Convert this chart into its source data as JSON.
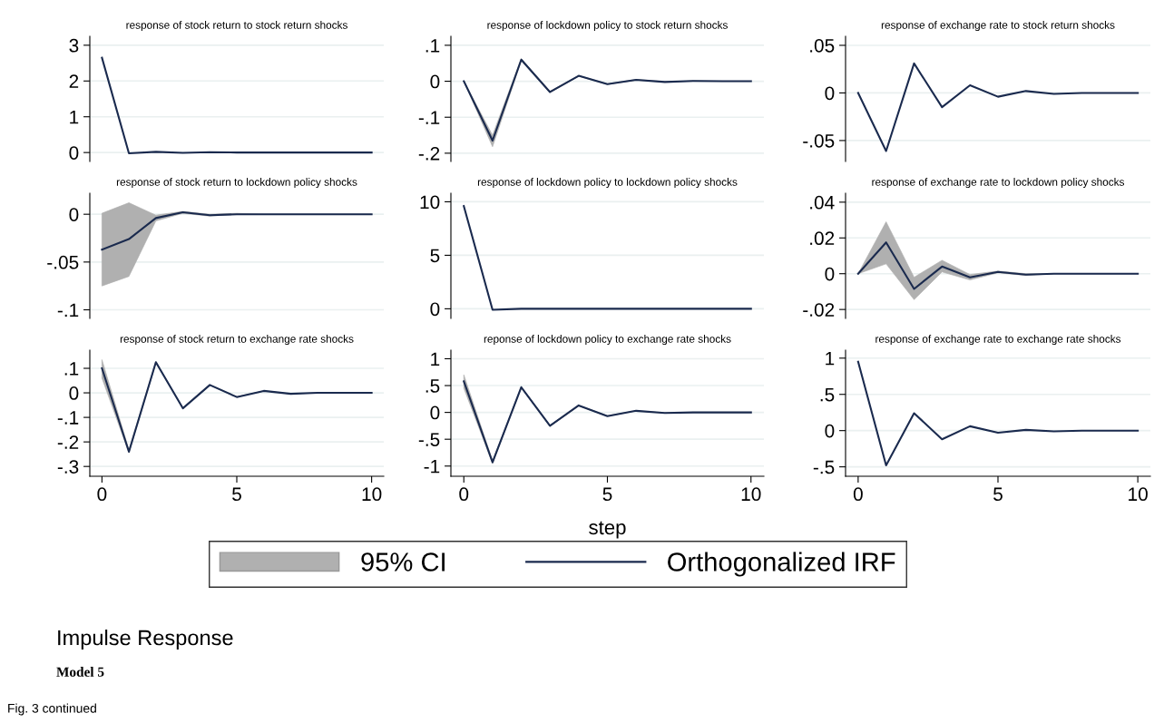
{
  "chart_data": [
    {
      "type": "line",
      "title": "response of stock return to stock return shocks",
      "x": [
        0,
        1,
        2,
        3,
        4,
        5,
        6,
        7,
        8,
        9,
        10
      ],
      "xlim": [
        -0.45,
        10.45
      ],
      "xticks": [
        0,
        5,
        10
      ],
      "ylim": [
        -0.25,
        3.25
      ],
      "yticks": [
        0,
        1,
        2,
        3
      ],
      "grid": "y",
      "tick_labels": "y",
      "marker": "none",
      "line_style": "solid",
      "series": [
        {
          "color": "#1a2a4e",
          "values": [
            2.65,
            -0.02,
            0.02,
            -0.01,
            0.01,
            0,
            0,
            0,
            0,
            0,
            0
          ]
        }
      ]
    },
    {
      "type": "line",
      "title": "response of lockdown policy to stock return shocks",
      "x": [
        0,
        1,
        2,
        3,
        4,
        5,
        6,
        7,
        8,
        9,
        10
      ],
      "xlim": [
        -0.45,
        10.45
      ],
      "xticks": [
        0,
        5,
        10
      ],
      "ylim": [
        -0.223,
        0.125
      ],
      "yticks": [
        {
          "value": 0.1,
          "label": ".1"
        },
        0,
        {
          "value": -0.1,
          "label": "-.1"
        },
        {
          "value": -0.2,
          "label": "-.2"
        }
      ],
      "grid": "y",
      "tick_labels": "y",
      "marker": "none",
      "line_style": "solid",
      "series": [
        {
          "color": "#1a2a4e",
          "values": [
            0,
            -0.165,
            0.06,
            -0.03,
            0.015,
            -0.008,
            0.004,
            -0.002,
            0.001,
            0,
            0
          ],
          "lower": [
            0,
            -0.182,
            0.057,
            -0.032,
            0.014,
            -0.009,
            0.003,
            -0.002,
            0.001,
            0,
            0
          ],
          "upper": [
            0,
            -0.15,
            0.063,
            -0.028,
            0.016,
            -0.007,
            0.005,
            -0.001,
            0.001,
            0,
            0
          ]
        }
      ]
    },
    {
      "type": "line",
      "title": "response of exchange rate to stock return shocks",
      "x": [
        0,
        1,
        2,
        3,
        4,
        5,
        6,
        7,
        8,
        9,
        10
      ],
      "xlim": [
        -0.45,
        10.45
      ],
      "xticks": [
        0,
        5,
        10
      ],
      "ylim": [
        -0.072,
        0.0595
      ],
      "yticks": [
        {
          "value": 0.05,
          "label": ".05"
        },
        0,
        {
          "value": -0.05,
          "label": "-.05"
        }
      ],
      "grid": "y",
      "tick_labels": "y",
      "marker": "none",
      "line_style": "solid",
      "series": [
        {
          "color": "#1a2a4e",
          "values": [
            0,
            -0.061,
            0.031,
            -0.015,
            0.008,
            -0.004,
            0.002,
            -0.001,
            0,
            0,
            0
          ]
        }
      ]
    },
    {
      "type": "line",
      "title": "response of stock return to lockdown policy shocks",
      "x": [
        0,
        1,
        2,
        3,
        4,
        5,
        6,
        7,
        8,
        9,
        10
      ],
      "xlim": [
        -0.45,
        10.45
      ],
      "xticks": [
        0,
        5,
        10
      ],
      "ylim": [
        -0.109,
        0.022
      ],
      "yticks": [
        0,
        {
          "value": -0.05,
          "label": "-.05"
        },
        {
          "value": -0.1,
          "label": "-.1"
        }
      ],
      "grid": "y",
      "tick_labels": "y",
      "marker": "none",
      "line_style": "solid",
      "series": [
        {
          "color": "#1a2a4e",
          "values": [
            -0.037,
            -0.026,
            -0.004,
            0.002,
            -0.001,
            0,
            0,
            0,
            0,
            0,
            0
          ],
          "lower": [
            -0.075,
            -0.065,
            -0.007,
            0.001,
            -0.002,
            0,
            0,
            0,
            0,
            0,
            0
          ],
          "upper": [
            0.001,
            0.012,
            -0.001,
            0.003,
            0,
            0.001,
            0,
            0,
            0,
            0,
            0
          ]
        }
      ]
    },
    {
      "type": "line",
      "title": "response of lockdown policy to lockdown policy shocks",
      "x": [
        0,
        1,
        2,
        3,
        4,
        5,
        6,
        7,
        8,
        9,
        10
      ],
      "xlim": [
        -0.45,
        10.45
      ],
      "xticks": [
        0,
        5,
        10
      ],
      "ylim": [
        -0.9,
        10.8
      ],
      "yticks": [
        0,
        5,
        10
      ],
      "grid": "y",
      "tick_labels": "y",
      "marker": "none",
      "line_style": "solid",
      "series": [
        {
          "color": "#1a2a4e",
          "values": [
            9.6,
            -0.1,
            0,
            0,
            0,
            0,
            0,
            0,
            0,
            0,
            0
          ]
        }
      ]
    },
    {
      "type": "line",
      "title": "response of exchange rate to lockdown policy shocks",
      "x": [
        0,
        1,
        2,
        3,
        4,
        5,
        6,
        7,
        8,
        9,
        10
      ],
      "xlim": [
        -0.45,
        10.45
      ],
      "xticks": [
        0,
        5,
        10
      ],
      "ylim": [
        -0.025,
        0.045
      ],
      "yticks": [
        {
          "value": 0.04,
          "label": ".04"
        },
        {
          "value": 0.02,
          "label": ".02"
        },
        0,
        {
          "value": -0.02,
          "label": "-.02"
        }
      ],
      "grid": "y",
      "tick_labels": "y",
      "marker": "none",
      "line_style": "solid",
      "series": [
        {
          "color": "#1a2a4e",
          "values": [
            0,
            0.0175,
            -0.0085,
            0.004,
            -0.002,
            0.001,
            -0.0005,
            0,
            0,
            0,
            0
          ],
          "lower": [
            0,
            0.0055,
            -0.0145,
            0.001,
            -0.0035,
            0.0005,
            -0.001,
            0,
            0,
            0,
            0
          ],
          "upper": [
            0,
            0.029,
            -0.002,
            0.0075,
            -0.0005,
            0.0015,
            0,
            0,
            0,
            0,
            0
          ]
        }
      ]
    },
    {
      "type": "line",
      "title": "response of stock return to exchange rate shocks",
      "x": [
        0,
        1,
        2,
        3,
        4,
        5,
        6,
        7,
        8,
        9,
        10
      ],
      "xlim": [
        -0.45,
        10.45
      ],
      "xticks": [
        0,
        5,
        10
      ],
      "ylim": [
        -0.34,
        0.174
      ],
      "yticks": [
        {
          "value": 0.1,
          "label": ".1"
        },
        0,
        {
          "value": -0.1,
          "label": "-.1"
        },
        {
          "value": -0.2,
          "label": "-.2"
        },
        {
          "value": -0.3,
          "label": "-.3"
        }
      ],
      "grid": "y",
      "marker": "none",
      "line_style": "solid",
      "series": [
        {
          "color": "#1a2a4e",
          "values": [
            0.1,
            -0.24,
            0.125,
            -0.063,
            0.032,
            -0.017,
            0.008,
            -0.004,
            0,
            0,
            0
          ],
          "lower": [
            0.06,
            -0.245,
            0.122,
            -0.064,
            0.031,
            -0.017,
            0.008,
            -0.004,
            0,
            0,
            0
          ],
          "upper": [
            0.135,
            -0.232,
            0.128,
            -0.062,
            0.033,
            -0.016,
            0.008,
            -0.004,
            0,
            0,
            0
          ]
        }
      ]
    },
    {
      "type": "line",
      "title": "reponse of lockdown policy to exchange rate shocks",
      "xlabel": "step",
      "legend": "bottom",
      "x": [
        0,
        1,
        2,
        3,
        4,
        5,
        6,
        7,
        8,
        9,
        10
      ],
      "xlim": [
        -0.45,
        10.45
      ],
      "xticks": [
        0,
        5,
        10
      ],
      "ylim": [
        -1.19,
        1.16
      ],
      "yticks": [
        1,
        {
          "value": 0.5,
          "label": ".5"
        },
        0,
        {
          "value": -0.5,
          "label": "-.5"
        },
        -1
      ],
      "grid": "y",
      "marker": "none",
      "line_style": "solid",
      "annotations": [
        "95% CI",
        "Impulse Response",
        "Model 5",
        "Fig. 3 continued"
      ],
      "series": [
        {
          "name": "Orthogonalized IRF",
          "color": "#1a2a4e",
          "values": [
            0.58,
            -0.93,
            0.47,
            -0.25,
            0.13,
            -0.07,
            0.03,
            -0.01,
            0,
            0,
            0
          ],
          "lower": [
            0.45,
            -0.95,
            0.46,
            -0.26,
            0.12,
            -0.07,
            0.03,
            -0.01,
            0,
            0,
            0
          ],
          "upper": [
            0.7,
            -0.9,
            0.48,
            -0.24,
            0.13,
            -0.06,
            0.03,
            -0.01,
            0,
            0,
            0
          ]
        }
      ]
    },
    {
      "type": "line",
      "title": "response of exchange rate to exchange rate shocks",
      "x": [
        0,
        1,
        2,
        3,
        4,
        5,
        6,
        7,
        8,
        9,
        10
      ],
      "xlim": [
        -0.45,
        10.45
      ],
      "xticks": [
        0,
        5,
        10
      ],
      "ylim": [
        -0.63,
        1.11
      ],
      "yticks": [
        1,
        {
          "value": 0.5,
          "label": ".5"
        },
        0,
        {
          "value": -0.5,
          "label": "-.5"
        }
      ],
      "grid": "y",
      "marker": "none",
      "line_style": "solid",
      "series": [
        {
          "color": "#1a2a4e",
          "values": [
            0.95,
            -0.48,
            0.24,
            -0.12,
            0.06,
            -0.03,
            0.01,
            -0.01,
            0,
            0,
            0
          ]
        }
      ]
    }
  ]
}
